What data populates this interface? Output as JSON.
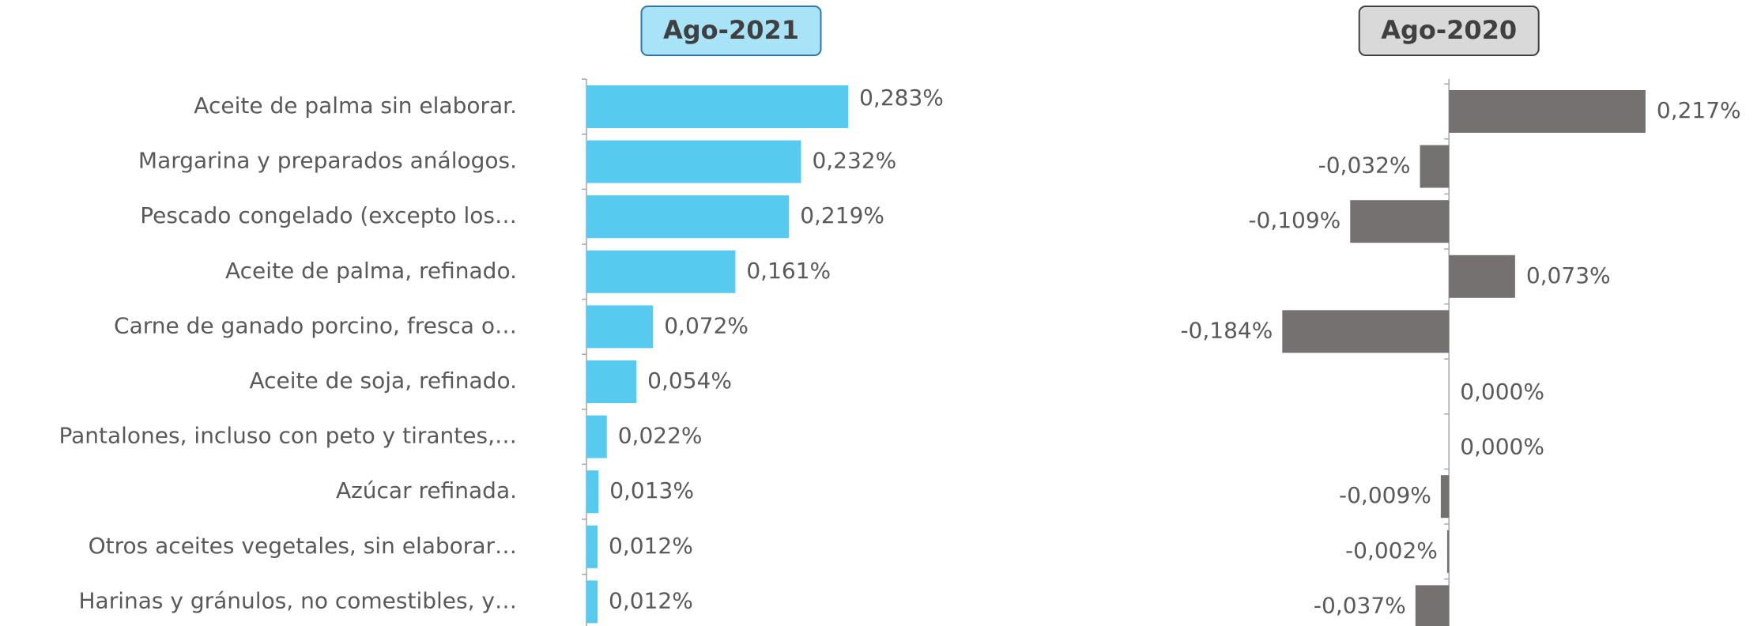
{
  "chart_data": [
    {
      "type": "bar",
      "title": "Ago-2021",
      "color": "#56cbef",
      "title_box_color": "#a9e3f7",
      "title_border_color": "#2e75b6",
      "categories": [
        "Aceite de palma sin elaborar.",
        "Margarina y preparados análogos.",
        "Pescado congelado (excepto los…",
        "Aceite de palma, refinado.",
        "Carne de ganado porcino, fresca o…",
        "Aceite de soja, refinado.",
        "Pantalones, incluso con peto y tirantes,…",
        "Azúcar refinada.",
        "Otros aceites vegetales, sin elaborar…",
        "Harinas y gránulos, no comestibles, y…"
      ],
      "values": [
        0.283,
        0.232,
        0.219,
        0.161,
        0.072,
        0.054,
        0.022,
        0.013,
        0.012,
        0.012
      ],
      "value_labels": [
        "0,283%",
        "0,232%",
        "0,219%",
        "0,161%",
        "0,072%",
        "0,054%",
        "0,022%",
        "0,013%",
        "0,012%",
        "0,012%"
      ],
      "xlim": [
        0,
        0.4
      ]
    },
    {
      "type": "bar",
      "title": "Ago-2020",
      "color": "#767171",
      "title_box_color": "#d9d9d9",
      "title_border_color": "#404040",
      "values": [
        0.217,
        -0.032,
        -0.109,
        0.073,
        -0.184,
        0.0,
        0.0,
        -0.009,
        -0.002,
        -0.037
      ],
      "value_labels": [
        "0,217%",
        "-0,032%",
        "-0,109%",
        "0,073%",
        "-0,184%",
        "0,000%",
        "0,000%",
        "-0,009%",
        "-0,002%",
        "-0,037%"
      ],
      "xlim": [
        -0.2,
        0.3
      ]
    }
  ]
}
